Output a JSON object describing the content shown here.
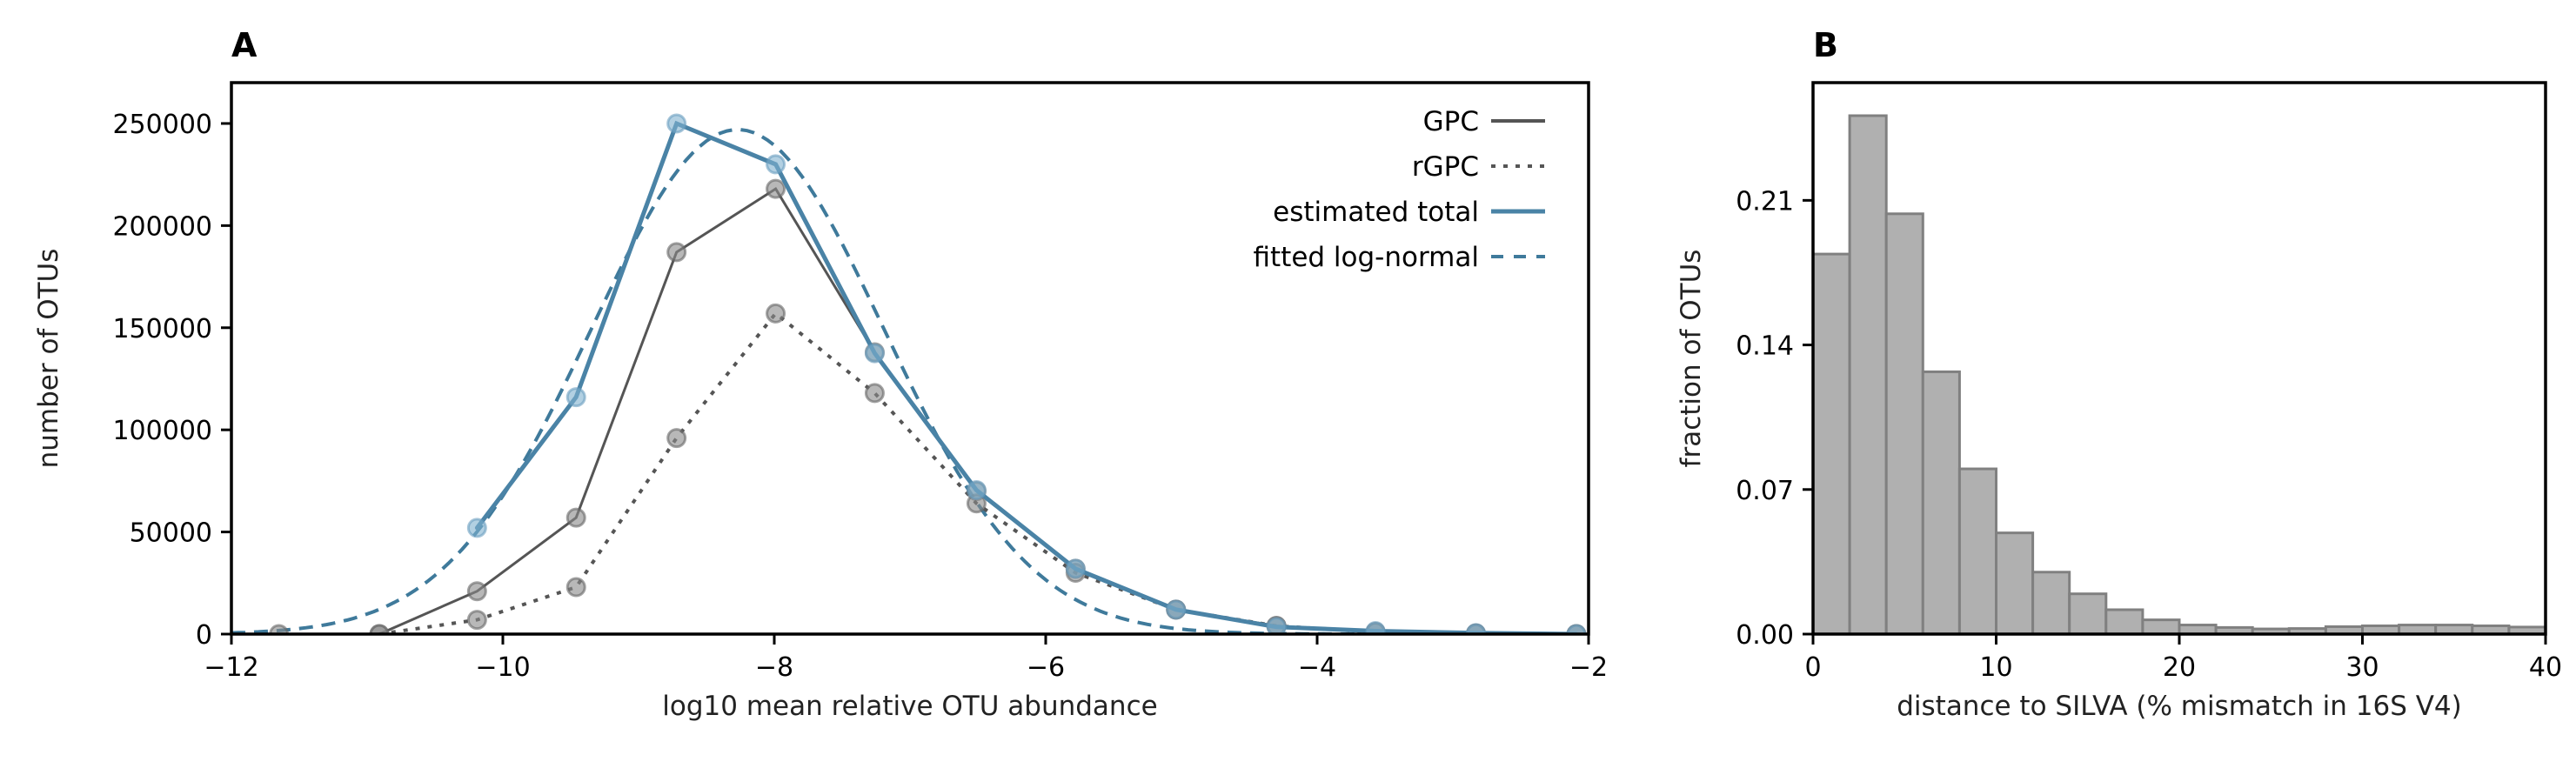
{
  "chart_data": [
    {
      "panel_label": "A",
      "type": "line",
      "xlabel": "log10 mean relative OTU abundance",
      "ylabel": "number of OTUs",
      "xlim": [
        -12,
        -2
      ],
      "ylim": [
        0,
        270000
      ],
      "xticks": [
        -12,
        -10,
        -8,
        -6,
        -4,
        -2
      ],
      "yticks": [
        0,
        50000,
        100000,
        150000,
        200000,
        250000
      ],
      "grid": false,
      "legend_placement": "top-right",
      "x": [
        -11.65,
        -10.91,
        -10.19,
        -9.46,
        -8.72,
        -7.99,
        -7.26,
        -6.51,
        -5.78,
        -5.04,
        -4.3,
        -3.57,
        -2.83,
        -2.09
      ],
      "series": [
        {
          "name": "GPC",
          "style": "solid",
          "color": "#555555",
          "values": [
            0,
            0,
            21000,
            57000,
            187000,
            218000,
            138000,
            70000,
            32000,
            12000,
            4000,
            1000,
            300,
            0
          ]
        },
        {
          "name": "rGPC",
          "style": "dotted",
          "color": "#555555",
          "values": [
            null,
            0,
            7000,
            23000,
            96000,
            157000,
            118000,
            64000,
            30000,
            12000,
            4000,
            1000,
            300,
            0
          ]
        },
        {
          "name": "estimated total",
          "style": "solid-thick",
          "color": "#4a83a6",
          "values": [
            null,
            null,
            52000,
            116000,
            250000,
            230000,
            137500,
            70500,
            32000,
            12000,
            3500,
            1500,
            500,
            0
          ]
        }
      ],
      "fit": {
        "name": "fitted log-normal",
        "style": "dashed",
        "color": "#3f7a9b",
        "peak": 247000,
        "mean": -8.27,
        "sd": 1.075
      }
    },
    {
      "panel_label": "B",
      "type": "bar",
      "xlabel": "distance to SILVA (% mismatch in 16S V4)",
      "ylabel": "fraction of OTUs",
      "xlim": [
        0,
        40
      ],
      "ylim": [
        0,
        0.267
      ],
      "xticks": [
        0,
        10,
        20,
        30,
        40
      ],
      "yticks": [
        "0.00",
        "0.07",
        "0.14",
        "0.21"
      ],
      "grid": false,
      "bin_edges": [
        0,
        2,
        4,
        6,
        8,
        10,
        12,
        14,
        16,
        18,
        20,
        22,
        24,
        26,
        28,
        30,
        32,
        34,
        36,
        38,
        40
      ],
      "values": [
        0.184,
        0.251,
        0.2035,
        0.127,
        0.08,
        0.049,
        0.03,
        0.0195,
        0.0118,
        0.0069,
        0.0044,
        0.0032,
        0.0025,
        0.0027,
        0.0036,
        0.004,
        0.0044,
        0.0044,
        0.004,
        0.0034
      ],
      "bar_color": "#b0b0b0",
      "edge_color": "#808080"
    }
  ]
}
